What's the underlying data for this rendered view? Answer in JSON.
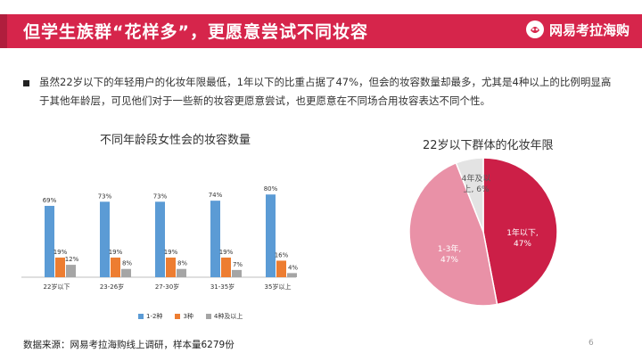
{
  "header": {
    "title": "但学生族群“花样多”，更愿意尝试不同妆容",
    "brand": "网易考拉海购"
  },
  "bullet": "虽然22岁以下的年轻用户的化妆年限最低，1年以下的比重占据了47%，但会的妆容数量却最多，尤其是4种以上的比例明显高于其他年龄层，可见他们对于一些新的妆容更愿意尝试，也更愿意在不同场合用妆容表达不同个性。",
  "footer": {
    "source": "数据来源：网易考拉海购线上调研，样本量6279份",
    "page": "6"
  },
  "colors": {
    "header": "#d6254b",
    "series": [
      "#5b9bd5",
      "#ed7d31",
      "#a5a5a5"
    ],
    "pie": [
      "#cc1f47",
      "#e991a7",
      "#e3e3e3"
    ]
  },
  "chart_data": [
    {
      "type": "bar",
      "title": "不同年龄段女性会的妆容数量",
      "categories": [
        "22岁以下",
        "23-26岁",
        "27-30岁",
        "31-35岁",
        "35岁以上"
      ],
      "series": [
        {
          "name": "1-2种",
          "values": [
            69,
            73,
            73,
            74,
            80
          ],
          "labels": [
            "69%",
            "73%",
            "73%",
            "74%",
            "80%"
          ]
        },
        {
          "name": "3种",
          "values": [
            19,
            19,
            19,
            19,
            16
          ],
          "labels": [
            "19%",
            "19%",
            "19%",
            "19%",
            "16%"
          ]
        },
        {
          "name": "4种及以上",
          "values": [
            12,
            8,
            8,
            7,
            4
          ],
          "labels": [
            "12%",
            "8%",
            "8%",
            "7%",
            "4%"
          ]
        }
      ],
      "ylim": [
        0,
        100
      ],
      "grid": false,
      "legend": "bottom"
    },
    {
      "type": "pie",
      "title": "22岁以下群体的化妆年限",
      "slices": [
        {
          "label_line1": "1年以下,",
          "label_line2": "47%",
          "value": 47
        },
        {
          "label_line1": "1-3年,",
          "label_line2": "47%",
          "value": 47
        },
        {
          "label_line1": "4年及以",
          "label_line2": "上, 6%",
          "value": 6
        }
      ]
    }
  ]
}
